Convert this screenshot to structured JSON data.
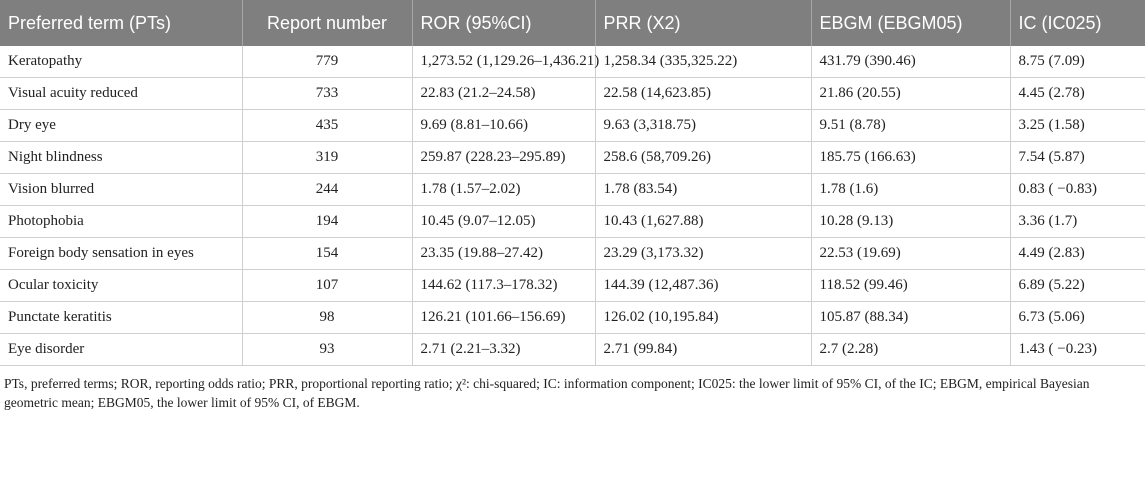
{
  "table": {
    "header": [
      "Preferred term (PTs)",
      "Report number",
      "ROR (95%CI)",
      "PRR (X2)",
      "EBGM (EBGM05)",
      "IC (IC025)"
    ],
    "rows": [
      [
        "Keratopathy",
        "779",
        "1,273.52 (1,129.26–1,436.21)",
        "1,258.34 (335,325.22)",
        "431.79 (390.46)",
        "8.75 (7.09)"
      ],
      [
        "Visual acuity reduced",
        "733",
        "22.83 (21.2–24.58)",
        "22.58 (14,623.85)",
        "21.86 (20.55)",
        "4.45 (2.78)"
      ],
      [
        "Dry eye",
        "435",
        "9.69 (8.81–10.66)",
        "9.63 (3,318.75)",
        "9.51 (8.78)",
        "3.25 (1.58)"
      ],
      [
        "Night blindness",
        "319",
        "259.87 (228.23–295.89)",
        "258.6 (58,709.26)",
        "185.75 (166.63)",
        "7.54 (5.87)"
      ],
      [
        "Vision blurred",
        "244",
        "1.78 (1.57–2.02)",
        "1.78 (83.54)",
        "1.78 (1.6)",
        "0.83 ( −0.83)"
      ],
      [
        "Photophobia",
        "194",
        "10.45 (9.07–12.05)",
        "10.43 (1,627.88)",
        "10.28 (9.13)",
        "3.36 (1.7)"
      ],
      [
        "Foreign body sensation in eyes",
        "154",
        "23.35 (19.88–27.42)",
        "23.29 (3,173.32)",
        "22.53 (19.69)",
        "4.49 (2.83)"
      ],
      [
        "Ocular toxicity",
        "107",
        "144.62 (117.3–178.32)",
        "144.39 (12,487.36)",
        "118.52 (99.46)",
        "6.89 (5.22)"
      ],
      [
        "Punctate keratitis",
        "98",
        "126.21 (101.66–156.69)",
        "126.02 (10,195.84)",
        "105.87 (88.34)",
        "6.73 (5.06)"
      ],
      [
        "Eye disorder",
        "93",
        "2.71 (2.21–3.32)",
        "2.71 (99.84)",
        "2.7 (2.28)",
        "1.43 ( −0.23)"
      ]
    ],
    "footnote": "PTs, preferred terms; ROR, reporting odds ratio; PRR, proportional reporting ratio; χ²: chi-squared; IC: information component; IC025: the lower limit of 95% CI, of the IC; EBGM, empirical Bayesian geometric mean; EBGM05, the lower limit of 95% CI, of EBGM."
  }
}
